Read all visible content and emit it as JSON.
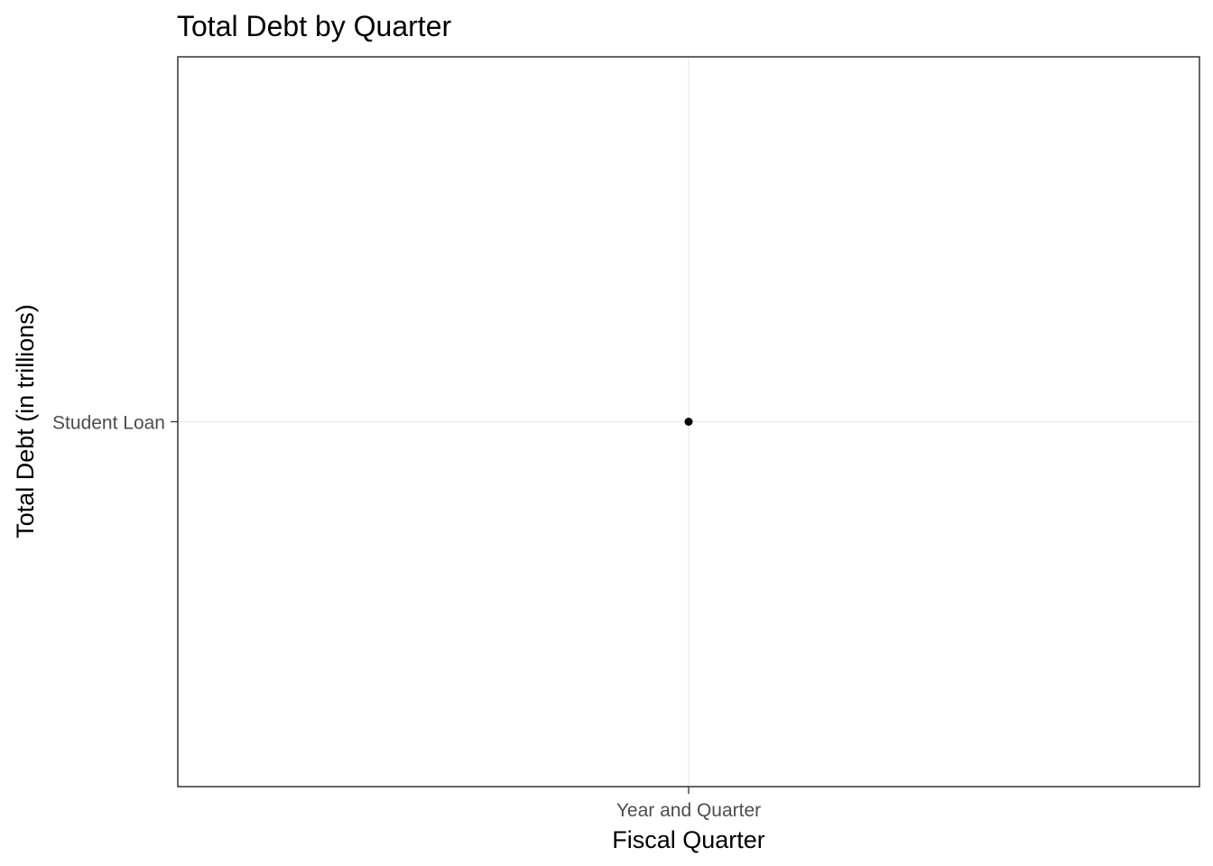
{
  "chart_data": {
    "type": "scatter",
    "title": "Total Debt by Quarter",
    "xlabel": "Fiscal Quarter",
    "ylabel": "Total Debt (in trillions)",
    "x_categories": [
      "Year and Quarter"
    ],
    "y_categories": [
      "Student Loan"
    ],
    "points": [
      {
        "x": "Year and Quarter",
        "y": "Student Loan"
      }
    ],
    "grid": true,
    "legend": "none",
    "colors": {
      "point": "#000000",
      "grid": "#ebebeb",
      "panel_border": "#333333",
      "tick_label": "#4d4d4d",
      "background": "#ffffff"
    }
  }
}
